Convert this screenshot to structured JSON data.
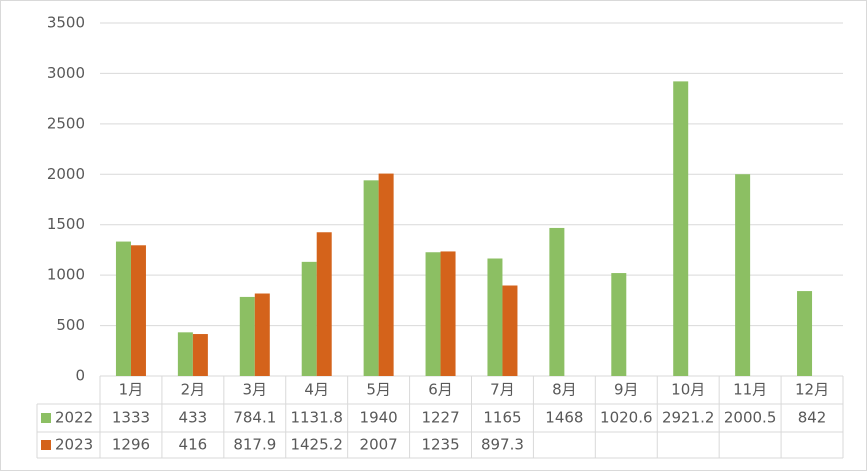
{
  "chart_data": {
    "type": "bar",
    "categories": [
      "1月",
      "2月",
      "3月",
      "4月",
      "5月",
      "6月",
      "7月",
      "8月",
      "9月",
      "10月",
      "11月",
      "12月"
    ],
    "series": [
      {
        "name": "2022",
        "color": "#8cbf63",
        "values": [
          1333,
          433,
          784.1,
          1131.8,
          1940,
          1227,
          1165,
          1468,
          1020.6,
          2921.2,
          2000.5,
          842
        ]
      },
      {
        "name": "2023",
        "color": "#d4631b",
        "values": [
          1296,
          416,
          817.9,
          1425.2,
          2007,
          1235,
          897.3,
          null,
          null,
          null,
          null,
          null
        ]
      }
    ],
    "ylim": [
      0,
      3500
    ],
    "yticks": [
      0,
      500,
      1000,
      1500,
      2000,
      2500,
      3000,
      3500
    ],
    "grid": true
  }
}
